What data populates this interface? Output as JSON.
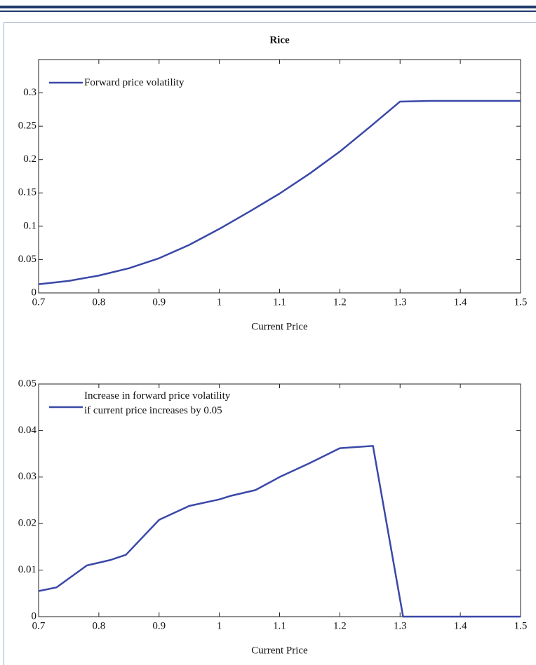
{
  "chart_data": [
    {
      "type": "line",
      "title": "Rice",
      "xlabel": "Current Price",
      "x": [
        0.7,
        0.75,
        0.8,
        0.85,
        0.9,
        0.95,
        1.0,
        1.05,
        1.1,
        1.15,
        1.2,
        1.25,
        1.3,
        1.35,
        1.4,
        1.45,
        1.5
      ],
      "series": [
        {
          "name": "Forward price volatility",
          "color": "#3a48a8",
          "values": [
            0.013,
            0.018,
            0.026,
            0.037,
            0.052,
            0.072,
            0.096,
            0.122,
            0.149,
            0.179,
            0.212,
            0.249,
            0.287,
            0.288,
            0.288,
            0.288,
            0.288
          ]
        }
      ],
      "xlim": [
        0.7,
        1.5
      ],
      "xticks": [
        0.7,
        0.8,
        0.9,
        1,
        1.1,
        1.2,
        1.3,
        1.4,
        1.5
      ],
      "ylim": [
        0,
        0.35
      ],
      "yticks": [
        0,
        0.05,
        0.1,
        0.15,
        0.2,
        0.25,
        0.3
      ],
      "legend": "upper left",
      "grid": false
    },
    {
      "type": "line",
      "xlabel": "Current Price",
      "x": [
        0.7,
        0.73,
        0.78,
        0.82,
        0.845,
        0.9,
        0.95,
        1.0,
        1.02,
        1.06,
        1.1,
        1.15,
        1.2,
        1.255,
        1.305,
        1.5
      ],
      "series": [
        {
          "name": "Increase in forward price volatility\nif current price increases by 0.05",
          "color": "#3a48a8",
          "values": [
            0.0055,
            0.0063,
            0.011,
            0.0122,
            0.0133,
            0.0208,
            0.0238,
            0.0252,
            0.026,
            0.0272,
            0.03,
            0.033,
            0.0362,
            0.0367,
            0,
            0
          ]
        }
      ],
      "xlim": [
        0.7,
        1.5
      ],
      "xticks": [
        0.7,
        0.8,
        0.9,
        1,
        1.1,
        1.2,
        1.3,
        1.4,
        1.5
      ],
      "ylim": [
        0,
        0.05
      ],
      "yticks": [
        0,
        0.01,
        0.02,
        0.03,
        0.04,
        0.05
      ],
      "legend": "upper left",
      "grid": false
    }
  ]
}
